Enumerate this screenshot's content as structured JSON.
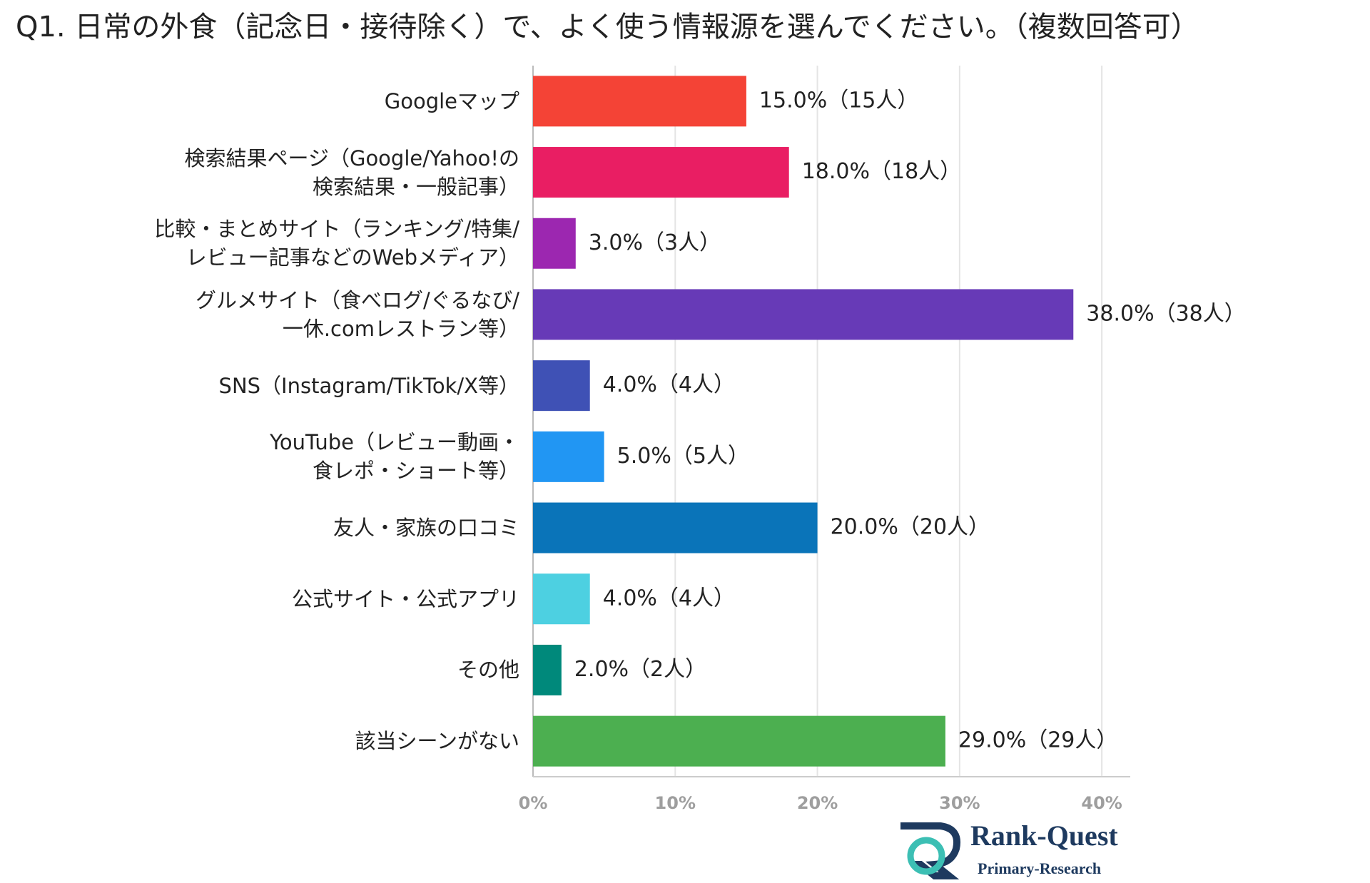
{
  "chart_data": {
    "type": "bar",
    "orientation": "horizontal",
    "title": "Q1. 日常の外食（記念日・接待除く）で、よく使う情報源を選んでください。（複数回答可）",
    "categories": [
      "Googleマップ",
      "検索結果ページ（Google/Yahoo!の\n検索結果・一般記事）",
      "比較・まとめサイト（ランキング/特集/\nレビュー記事などのWebメディア）",
      "グルメサイト（食べログ/ぐるなび/\n一休.comレストラン等）",
      "SNS（Instagram/TikTok/X等）",
      "YouTube（レビュー動画・\n食レポ・ショート等）",
      "友人・家族の口コミ",
      "公式サイト・公式アプリ",
      "その他",
      "該当シーンがない"
    ],
    "values": [
      15,
      18,
      3,
      38,
      4,
      5,
      20,
      4,
      2,
      29
    ],
    "value_labels": [
      "15.0%（15人）",
      "18.0%（18人）",
      "3.0%（3人）",
      "38.0%（38人）",
      "4.0%（4人）",
      "5.0%（5人）",
      "20.0%（20人）",
      "4.0%（4人）",
      "2.0%（2人）",
      "29.0%（29人）"
    ],
    "colors": [
      "#f44336",
      "#e91e63",
      "#9c27b0",
      "#673ab7",
      "#3f51b5",
      "#2196f3",
      "#0a74b9",
      "#4dd0e1",
      "#00897b",
      "#4caf50"
    ],
    "xlim": [
      0,
      42
    ],
    "xticks": [
      {
        "value": 0,
        "label": "0%"
      },
      {
        "value": 10,
        "label": "10%"
      },
      {
        "value": 20,
        "label": "20%"
      },
      {
        "value": 30,
        "label": "30%"
      },
      {
        "value": 40,
        "label": "40%"
      }
    ],
    "grid": true
  },
  "logo": {
    "name": "Rank-Quest",
    "subtitle": "Primary-Research"
  }
}
